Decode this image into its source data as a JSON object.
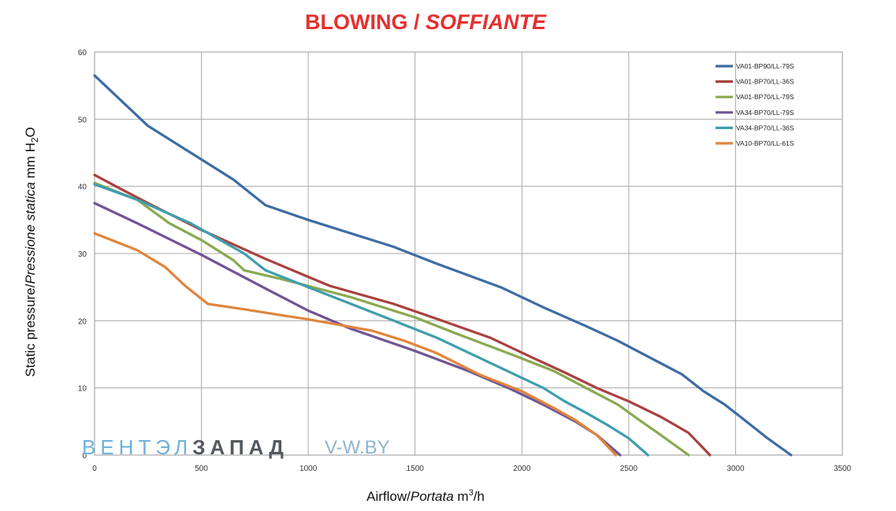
{
  "title": {
    "main": "BLOWING / ",
    "italic": "SOFFIANTE"
  },
  "watermark": {
    "part1": "ВЕНТЭЛ",
    "part2": "ЗАПАД",
    "site": "V-W.BY"
  },
  "axis": {
    "y_title": {
      "main": "Static pressure/",
      "italic": "Pressione statica",
      "unit": " mm  H",
      "sub": "2",
      "tail": "O"
    },
    "x_title": {
      "main": "Airflow/",
      "italic": "Portata",
      "unit": " m",
      "sup": "3",
      "tail": "/h"
    }
  },
  "chart_data": {
    "type": "line",
    "title": "BLOWING / SOFFIANTE",
    "xlabel": "Airflow/Portata m3/h",
    "ylabel": "Static pressure/Pressione statica mm H2O",
    "xlim": [
      0,
      3500
    ],
    "ylim": [
      0,
      60
    ],
    "x_ticks": [
      0,
      500,
      1000,
      1500,
      2000,
      2500,
      3000,
      3500
    ],
    "y_ticks": [
      0,
      10,
      20,
      30,
      40,
      50,
      60
    ],
    "grid": true,
    "legend_position": "top-right",
    "series": [
      {
        "name": "VA01-BP90/LL-79S",
        "color": "#3e6ca3",
        "points": [
          [
            0,
            56.5
          ],
          [
            250,
            49
          ],
          [
            500,
            44
          ],
          [
            650,
            41
          ],
          [
            800,
            37.2
          ],
          [
            1000,
            35
          ],
          [
            1400,
            31
          ],
          [
            1600,
            28.5
          ],
          [
            1900,
            25
          ],
          [
            2100,
            22
          ],
          [
            2300,
            19.2
          ],
          [
            2450,
            17
          ],
          [
            2600,
            14.5
          ],
          [
            2750,
            12
          ],
          [
            2850,
            9.5
          ],
          [
            2950,
            7.5
          ],
          [
            3050,
            5
          ],
          [
            3150,
            2.5
          ],
          [
            3260,
            0
          ]
        ]
      },
      {
        "name": "VA01-BP70/LL-36S",
        "color": "#a84240",
        "points": [
          [
            0,
            41.7
          ],
          [
            100,
            40
          ],
          [
            250,
            37.5
          ],
          [
            500,
            33.5
          ],
          [
            800,
            29.2
          ],
          [
            1100,
            25.2
          ],
          [
            1400,
            22.5
          ],
          [
            1600,
            20.3
          ],
          [
            1850,
            17.5
          ],
          [
            2050,
            14.5
          ],
          [
            2200,
            12.3
          ],
          [
            2350,
            10
          ],
          [
            2500,
            8
          ],
          [
            2650,
            5.7
          ],
          [
            2780,
            3.3
          ],
          [
            2880,
            0
          ]
        ]
      },
      {
        "name": "VA01-BP70/LL-79S",
        "color": "#8aa951",
        "points": [
          [
            0,
            40.5
          ],
          [
            200,
            38
          ],
          [
            350,
            34.5
          ],
          [
            500,
            32
          ],
          [
            650,
            29
          ],
          [
            700,
            27.5
          ],
          [
            900,
            26
          ],
          [
            1200,
            23.5
          ],
          [
            1500,
            20.5
          ],
          [
            1700,
            18
          ],
          [
            1950,
            15
          ],
          [
            2150,
            12.5
          ],
          [
            2300,
            10
          ],
          [
            2450,
            7.5
          ],
          [
            2550,
            5.2
          ],
          [
            2650,
            3
          ],
          [
            2780,
            0
          ]
        ]
      },
      {
        "name": "VA34-BP70/LL-79S",
        "color": "#6e5596",
        "points": [
          [
            0,
            37.5
          ],
          [
            200,
            34.5
          ],
          [
            500,
            29.8
          ],
          [
            800,
            24.8
          ],
          [
            1000,
            21.5
          ],
          [
            1200,
            18.8
          ],
          [
            1500,
            15.5
          ],
          [
            1750,
            12.5
          ],
          [
            1950,
            9.8
          ],
          [
            2100,
            7.5
          ],
          [
            2250,
            5
          ],
          [
            2350,
            3
          ],
          [
            2460,
            0
          ]
        ]
      },
      {
        "name": "VA34-BP70/LL-36S",
        "color": "#3f9eae",
        "points": [
          [
            0,
            40.3
          ],
          [
            200,
            38
          ],
          [
            450,
            34.5
          ],
          [
            700,
            30
          ],
          [
            800,
            27.5
          ],
          [
            1000,
            25
          ],
          [
            1200,
            22.5
          ],
          [
            1400,
            20
          ],
          [
            1600,
            17.5
          ],
          [
            1800,
            14.5
          ],
          [
            2000,
            11.5
          ],
          [
            2100,
            10
          ],
          [
            2200,
            8
          ],
          [
            2300,
            6.3
          ],
          [
            2400,
            4.5
          ],
          [
            2500,
            2.5
          ],
          [
            2590,
            0
          ]
        ]
      },
      {
        "name": "VA10-BP70/LL-61S",
        "color": "#e0853d",
        "points": [
          [
            0,
            33
          ],
          [
            200,
            30.5
          ],
          [
            330,
            28
          ],
          [
            420,
            25.3
          ],
          [
            530,
            22.5
          ],
          [
            700,
            21.7
          ],
          [
            900,
            20.7
          ],
          [
            1000,
            20.2
          ],
          [
            1300,
            18.5
          ],
          [
            1450,
            17
          ],
          [
            1600,
            15.2
          ],
          [
            1800,
            12
          ],
          [
            2000,
            9.5
          ],
          [
            2150,
            7
          ],
          [
            2250,
            5.2
          ],
          [
            2350,
            3
          ],
          [
            2440,
            0
          ]
        ]
      }
    ]
  }
}
